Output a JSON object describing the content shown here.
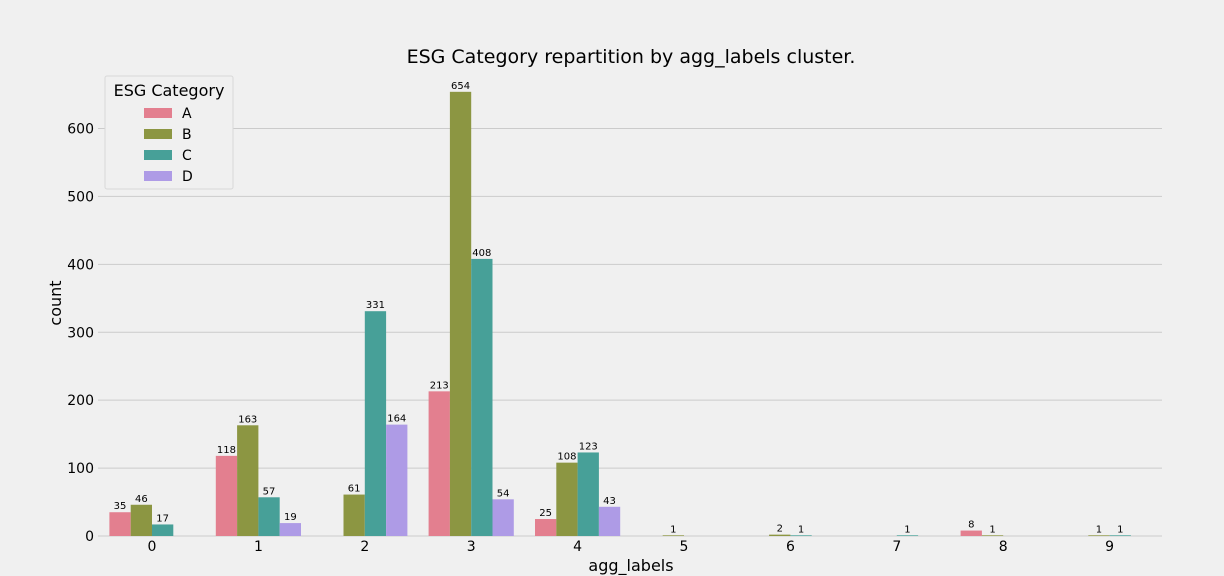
{
  "chart_data": {
    "type": "bar",
    "title": "ESG Category repartition by agg_labels cluster.",
    "xlabel": "agg_labels",
    "ylabel": "count",
    "categories": [
      "0",
      "1",
      "2",
      "3",
      "4",
      "5",
      "6",
      "7",
      "8",
      "9"
    ],
    "ylim": [
      0,
      680
    ],
    "yticks": [
      0,
      100,
      200,
      300,
      400,
      500,
      600
    ],
    "grid": true,
    "legend": {
      "title": "ESG Category",
      "placement": "top-left"
    },
    "series": [
      {
        "name": "A",
        "color": "#e37f8f",
        "values": [
          35,
          118,
          0,
          213,
          25,
          0,
          0,
          0,
          8,
          0
        ]
      },
      {
        "name": "B",
        "color": "#8c9642",
        "values": [
          46,
          163,
          61,
          654,
          108,
          1,
          2,
          0,
          1,
          1
        ]
      },
      {
        "name": "C",
        "color": "#47a098",
        "values": [
          17,
          57,
          331,
          408,
          123,
          0,
          1,
          1,
          0,
          1
        ]
      },
      {
        "name": "D",
        "color": "#ae9be6",
        "values": [
          0,
          19,
          164,
          54,
          43,
          0,
          0,
          0,
          0,
          0
        ]
      }
    ]
  }
}
